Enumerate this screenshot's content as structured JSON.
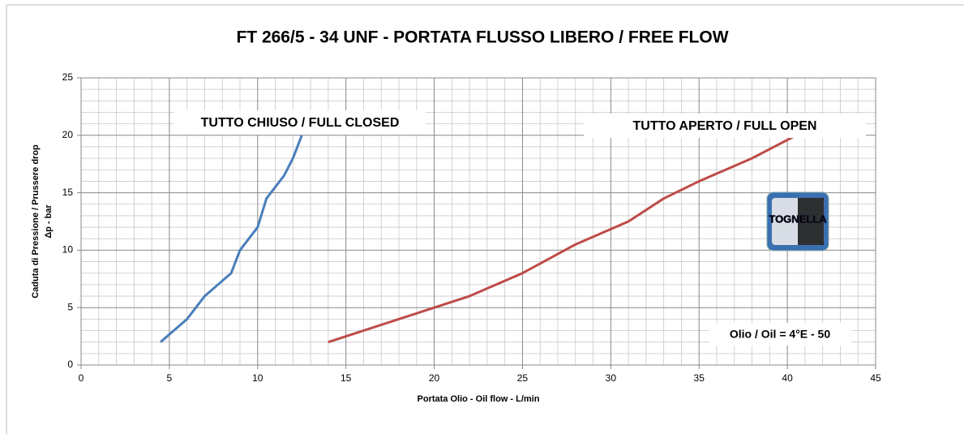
{
  "chart_data": {
    "type": "line",
    "title": "FT 266/5 - 34 UNF  - PORTATA FLUSSO LIBERO / FREE FLOW",
    "xlabel": "Portata Olio - Oil flow -  L/min",
    "ylabel": [
      "Caduta di Pressione / Prussere drop",
      "Δp - bar"
    ],
    "xlim": [
      0,
      45
    ],
    "xticks": [
      0,
      5,
      10,
      15,
      20,
      25,
      30,
      35,
      40,
      45
    ],
    "ylim": [
      0,
      25
    ],
    "yticks": [
      0,
      5,
      10,
      15,
      20,
      25
    ],
    "grid": true,
    "minor_grid": true,
    "series": [
      {
        "name": "TUTTO CHIUSO / FULL CLOSED",
        "color": "#4a7ebb",
        "x": [
          4.5,
          6,
          7,
          8.5,
          9,
          10,
          10.5,
          11.5,
          12,
          12.5
        ],
        "values": [
          2,
          4,
          6,
          8,
          10,
          12,
          14.5,
          16.5,
          18,
          20
        ]
      },
      {
        "name": "TUTTO APERTO / FULL OPEN",
        "color": "#be4b48",
        "x": [
          14,
          20,
          22,
          25,
          28,
          31,
          33,
          35,
          38,
          40.5
        ],
        "values": [
          2,
          5,
          6,
          8,
          10.5,
          12.5,
          14.5,
          16,
          18,
          20
        ]
      }
    ],
    "annotations": [
      "Olio / Oil = 4°E - 50"
    ],
    "logo_text": "TOGNELLA"
  }
}
